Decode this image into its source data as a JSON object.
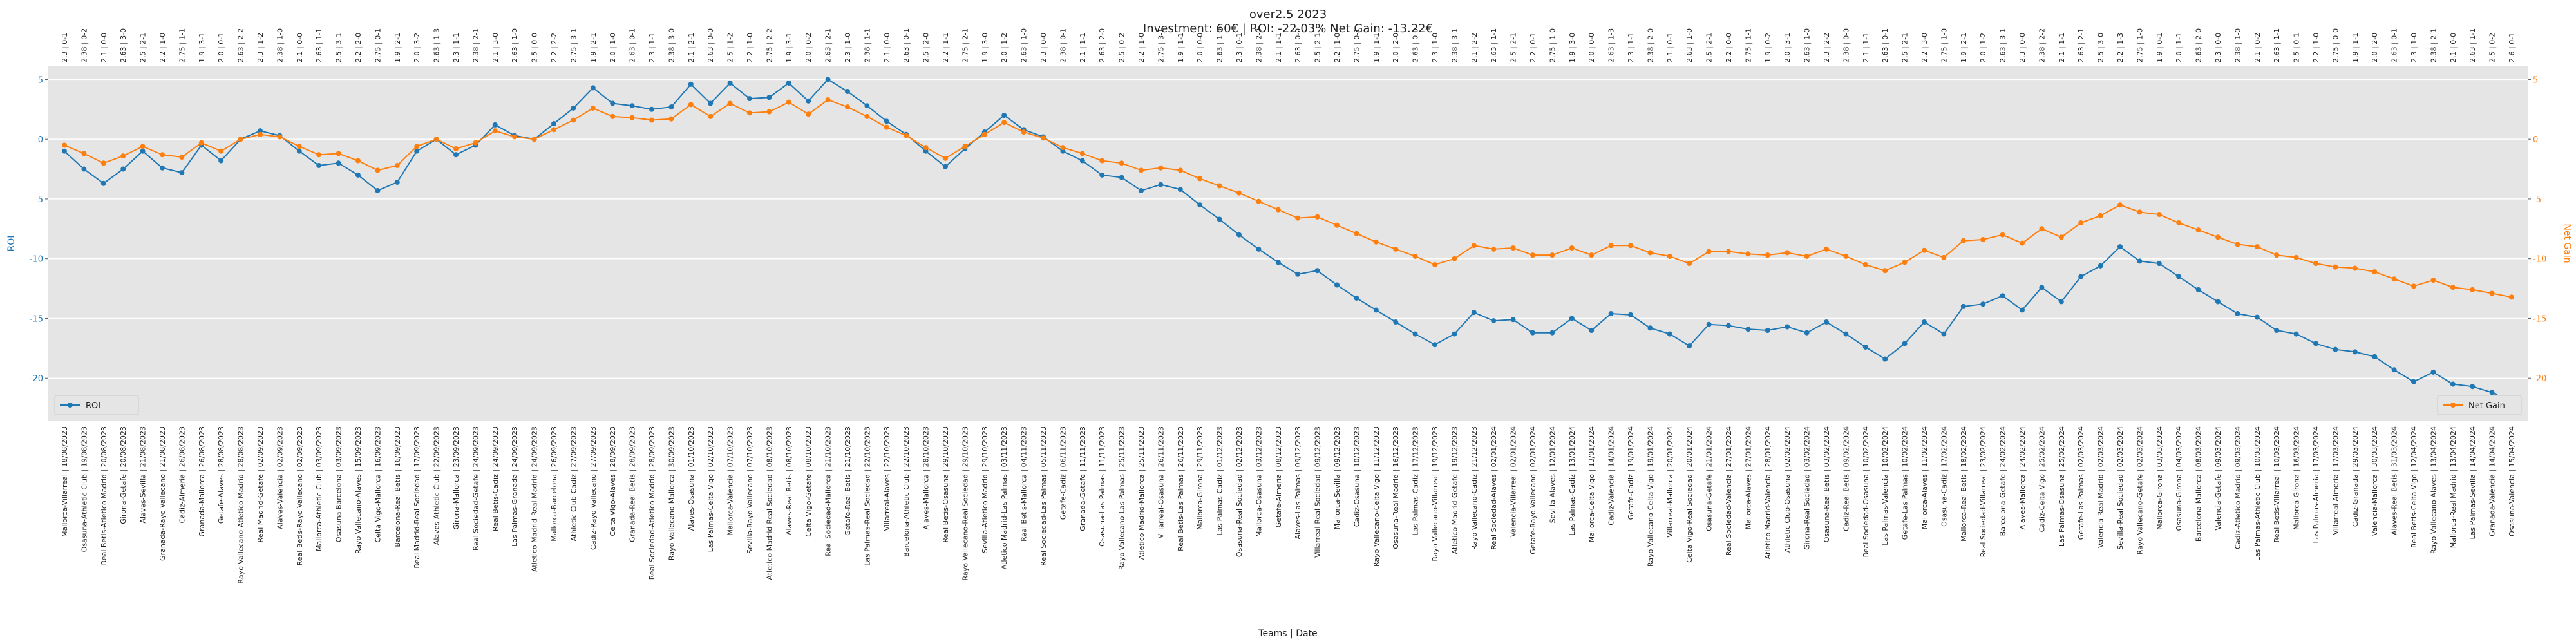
{
  "chart_data": {
    "type": "line",
    "title": "over2.5 2023",
    "subtitle": "Investment: 60€ | ROI: -22.03% Net Gain: -13.22€",
    "xlabel": "Teams | Date",
    "ylabel": "ROI",
    "y2label": "Net Gain",
    "ylim": [
      -23.6,
      6.1
    ],
    "yticks": [
      -20,
      -15,
      -10,
      -5,
      0,
      5
    ],
    "y2lim": [
      -23.6,
      6.1
    ],
    "y2ticks": [
      -20,
      -15,
      -10,
      -5,
      0,
      5
    ],
    "grid": true,
    "categories": [
      "Mallorca-Villarreal | 18/08/2023",
      "Osasuna-Athletic Club | 19/08/2023",
      "Real Betis-Atletico Madrid | 20/08/2023",
      "Girona-Getafe | 20/08/2023",
      "Alaves-Sevilla | 21/08/2023",
      "Granada-Rayo Vallecano | 21/08/2023",
      "Cadiz-Almeria | 26/08/2023",
      "Granada-Mallorca | 26/08/2023",
      "Getafe-Alaves | 28/08/2023",
      "Rayo Vallecano-Atletico Madrid | 28/08/2023",
      "Real Madrid-Getafe | 02/09/2023",
      "Alaves-Valencia | 02/09/2023",
      "Real Betis-Rayo Vallecano | 02/09/2023",
      "Mallorca-Athletic Club | 03/09/2023",
      "Osasuna-Barcelona | 03/09/2023",
      "Rayo Vallecano-Alaves | 15/09/2023",
      "Celta Vigo-Mallorca | 16/09/2023",
      "Barcelona-Real Betis | 16/09/2023",
      "Real Madrid-Real Sociedad | 17/09/2023",
      "Alaves-Athletic Club | 22/09/2023",
      "Girona-Mallorca | 23/09/2023",
      "Real Sociedad-Getafe | 24/09/2023",
      "Real Betis-Cadiz | 24/09/2023",
      "Las Palmas-Granada | 24/09/2023",
      "Atletico Madrid-Real Madrid | 24/09/2023",
      "Mallorca-Barcelona | 26/09/2023",
      "Athletic Club-Cadiz | 27/09/2023",
      "Cadiz-Rayo Vallecano | 27/09/2023",
      "Celta Vigo-Alaves | 28/09/2023",
      "Granada-Real Betis | 28/09/2023",
      "Real Sociedad-Atletico Madrid | 28/09/2023",
      "Rayo Vallecano-Mallorca | 30/09/2023",
      "Alaves-Osasuna | 01/10/2023",
      "Las Palmas-Celta Vigo | 02/10/2023",
      "Mallorca-Valencia | 07/10/2023",
      "Sevilla-Rayo Vallecano | 07/10/2023",
      "Atletico Madrid-Real Sociedad | 08/10/2023",
      "Alaves-Real Betis | 08/10/2023",
      "Celta Vigo-Getafe | 08/10/2023",
      "Real Sociedad-Mallorca | 21/10/2023",
      "Getafe-Real Betis | 21/10/2023",
      "Las Palmas-Real Sociedad | 22/10/2023",
      "Villarreal-Alaves | 22/10/2023",
      "Barcelona-Athletic Club | 22/10/2023",
      "Alaves-Mallorca | 28/10/2023",
      "Real Betis-Osasuna | 29/10/2023",
      "Rayo Vallecano-Real Sociedad | 29/10/2023",
      "Sevilla-Atletico Madrid | 29/10/2023",
      "Atletico Madrid-Las Palmas | 03/11/2023",
      "Real Betis-Mallorca | 04/11/2023",
      "Real Sociedad-Las Palmas | 05/11/2023",
      "Getafe-Cadiz | 06/11/2023",
      "Granada-Getafe | 11/11/2023",
      "Osasuna-Las Palmas | 11/11/2023",
      "Rayo Vallecano-Las Palmas | 25/11/2023",
      "Atletico Madrid-Mallorca | 25/11/2023",
      "Villarreal-Osasuna | 26/11/2023",
      "Real Betis-Las Palmas | 26/11/2023",
      "Mallorca-Girona | 29/11/2023",
      "Las Palmas-Cadiz | 01/12/2023",
      "Osasuna-Real Sociedad | 02/12/2023",
      "Mallorca-Osasuna | 03/12/2023",
      "Getafe-Almeria | 08/12/2023",
      "Alaves-Las Palmas | 09/12/2023",
      "Villarreal-Real Sociedad | 09/12/2023",
      "Mallorca-Sevilla | 09/12/2023",
      "Cadiz-Osasuna | 10/12/2023",
      "Rayo Vallecano-Celta Vigo | 11/12/2023",
      "Osasuna-Real Madrid | 16/12/2023",
      "Las Palmas-Cadiz | 17/12/2023",
      "Rayo Vallecano-Villarreal | 19/12/2023",
      "Atletico Madrid-Getafe | 19/12/2023",
      "Rayo Vallecano-Cadiz | 21/12/2023",
      "Real Sociedad-Alaves | 02/01/2024",
      "Valencia-Villarreal | 02/01/2024",
      "Getafe-Rayo Vallecano | 02/01/2024",
      "Sevilla-Alaves | 12/01/2024",
      "Las Palmas-Cadiz | 13/01/2024",
      "Mallorca-Celta Vigo | 13/01/2024",
      "Cadiz-Valencia | 14/01/2024",
      "Getafe-Cadiz | 19/01/2024",
      "Rayo Vallecano-Celta Vigo | 19/01/2024",
      "Villarreal-Mallorca | 20/01/2024",
      "Celta Vigo-Real Sociedad | 20/01/2024",
      "Osasuna-Getafe | 21/01/2024",
      "Real Sociedad-Valencia | 27/01/2024",
      "Mallorca-Alaves | 27/01/2024",
      "Atletico Madrid-Valencia | 28/01/2024",
      "Athletic Club-Osasuna | 02/02/2024",
      "Girona-Real Sociedad | 03/02/2024",
      "Osasuna-Real Betis | 03/02/2024",
      "Cadiz-Real Betis | 09/02/2024",
      "Real Sociedad-Osasuna | 10/02/2024",
      "Las Palmas-Valencia | 10/02/2024",
      "Getafe-Las Palmas | 10/02/2024",
      "Mallorca-Alaves | 11/02/2024",
      "Osasuna-Cadiz | 17/02/2024",
      "Mallorca-Real Betis | 18/02/2024",
      "Real Sociedad-Villarreal | 23/02/2024",
      "Barcelona-Getafe | 24/02/2024",
      "Alaves-Mallorca | 24/02/2024",
      "Cadiz-Celta Vigo | 25/02/2024",
      "Las Palmas-Osasuna | 25/02/2024",
      "Getafe-Las Palmas | 02/03/2024",
      "Valencia-Real Madrid | 02/03/2024",
      "Sevilla-Real Sociedad | 02/03/2024",
      "Rayo Vallecano-Getafe | 02/03/2024",
      "Mallorca-Girona | 03/03/2024",
      "Osasuna-Girona | 04/03/2024",
      "Barcelona-Mallorca | 08/03/2024",
      "Valencia-Getafe | 09/03/2024",
      "Cadiz-Atletico Madrid | 09/03/2024",
      "Las Palmas-Athletic Club | 10/03/2024",
      "Real Betis-Villarreal | 10/03/2024",
      "Mallorca-Girona | 16/03/2024",
      "Las Palmas-Almeria | 17/03/2024",
      "Villarreal-Almeria | 17/03/2024",
      "Cadiz-Granada | 29/03/2024",
      "Valencia-Mallorca | 30/03/2024",
      "Alaves-Real Betis | 31/03/2024",
      "Real Betis-Celta Vigo | 12/04/2024",
      "Rayo Vallecano-Alaves | 13/04/2024",
      "Mallorca-Real Madrid | 13/04/2024",
      "Las Palmas-Sevilla | 14/04/2024",
      "Granada-Valencia | 14/04/2024",
      "Osasuna-Valencia | 15/04/2024"
    ],
    "top_categories": [
      "2.3 | 0-1",
      "2.38 | 0-2",
      "2.1 | 0-0",
      "2.63 | 3-0",
      "2.5 | 2-1",
      "2.2 | 1-0",
      "2.75 | 1-1",
      "1.9 | 3-1",
      "2.0 | 0-1",
      "2.63 | 2-2",
      "2.3 | 1-2",
      "2.38 | 1-0",
      "2.1 | 0-0",
      "2.63 | 1-1",
      "2.5 | 3-1",
      "2.2 | 2-0",
      "2.75 | 0-1",
      "1.9 | 2-1",
      "2.0 | 3-2",
      "2.63 | 1-3",
      "2.3 | 1-1",
      "2.38 | 2-1",
      "2.1 | 3-0",
      "2.63 | 1-0",
      "2.5 | 0-0",
      "2.2 | 2-2",
      "2.75 | 3-1",
      "1.9 | 2-1",
      "2.0 | 1-0",
      "2.63 | 0-1",
      "2.3 | 1-1",
      "2.38 | 3-0",
      "2.1 | 2-1",
      "2.63 | 0-0",
      "2.5 | 1-2",
      "2.2 | 1-0",
      "2.75 | 2-2",
      "1.9 | 3-1",
      "2.0 | 0-2",
      "2.63 | 2-1",
      "2.3 | 1-0",
      "2.38 | 1-1",
      "2.1 | 0-0",
      "2.63 | 0-1",
      "2.5 | 2-0",
      "2.2 | 1-1",
      "2.75 | 2-1",
      "1.9 | 3-0",
      "2.0 | 1-2",
      "2.63 | 1-0",
      "2.3 | 0-0",
      "2.38 | 0-1",
      "2.1 | 1-1",
      "2.63 | 2-0",
      "2.5 | 0-2",
      "2.2 | 1-0",
      "2.75 | 3-1",
      "1.9 | 1-1",
      "2.0 | 0-0",
      "2.63 | 1-0",
      "2.3 | 0-1",
      "2.38 | 2-0",
      "2.1 | 1-1",
      "2.63 | 0-0",
      "2.5 | 2-1",
      "2.2 | 1-0",
      "2.75 | 0-1",
      "1.9 | 1-1",
      "2.0 | 2-0",
      "2.63 | 0-0",
      "2.3 | 1-0",
      "2.38 | 3-1",
      "2.1 | 2-2",
      "2.63 | 1-1",
      "2.5 | 2-1",
      "2.2 | 0-1",
      "2.75 | 1-0",
      "1.9 | 3-0",
      "2.0 | 0-0",
      "2.63 | 1-3",
      "2.3 | 1-1",
      "2.38 | 2-0",
      "2.1 | 0-1",
      "2.63 | 1-0",
      "2.5 | 2-1",
      "2.2 | 0-0",
      "2.75 | 1-1",
      "1.9 | 0-2",
      "2.0 | 3-1",
      "2.63 | 1-0",
      "2.3 | 2-2",
      "2.38 | 0-0",
      "2.1 | 1-1",
      "2.63 | 0-1",
      "2.5 | 2-1",
      "2.2 | 3-0",
      "2.75 | 1-0",
      "1.9 | 2-1",
      "2.0 | 1-2",
      "2.63 | 3-1",
      "2.3 | 0-0",
      "2.38 | 2-2",
      "2.1 | 1-1",
      "2.63 | 2-1",
      "2.5 | 3-0",
      "2.2 | 1-3",
      "2.75 | 1-0",
      "1.9 | 0-1",
      "2.0 | 1-1",
      "2.63 | 2-0",
      "2.3 | 0-0",
      "2.38 | 1-0",
      "2.1 | 0-2",
      "2.63 | 1-1",
      "2.5 | 0-1",
      "2.2 | 1-0",
      "2.75 | 0-0",
      "1.9 | 1-1",
      "2.0 | 2-0",
      "2.63 | 0-1",
      "2.3 | 1-0",
      "2.38 | 2-1",
      "2.1 | 0-0",
      "2.63 | 1-1",
      "2.5 | 0-2",
      "2.6 | 0-1"
    ],
    "series": [
      {
        "name": "ROI",
        "color": "#1f77b4",
        "axis": "y",
        "legend": "lower left",
        "values": [
          -1.0,
          -2.5,
          -3.7,
          -2.5,
          -1.0,
          -2.4,
          -2.8,
          -0.5,
          -1.8,
          0.0,
          0.7,
          0.3,
          -1.0,
          -2.2,
          -2.0,
          -3.0,
          -4.3,
          -3.6,
          -1.0,
          0.0,
          -1.3,
          -0.5,
          1.2,
          0.3,
          0.0,
          1.3,
          2.6,
          4.3,
          3.0,
          2.8,
          2.5,
          2.7,
          4.6,
          3.0,
          4.7,
          3.4,
          3.5,
          4.7,
          3.2,
          5.0,
          4.0,
          2.8,
          1.5,
          0.4,
          -1.0,
          -2.3,
          -0.8,
          0.6,
          2.0,
          0.8,
          0.2,
          -1.0,
          -1.8,
          -3.0,
          -3.2,
          -4.3,
          -3.8,
          -4.2,
          -5.5,
          -6.7,
          -8.0,
          -9.2,
          -10.3,
          -11.3,
          -11.0,
          -12.2,
          -13.3,
          -14.3,
          -15.3,
          -16.3,
          -17.2,
          -16.3,
          -14.5,
          -15.2,
          -15.1,
          -16.2,
          -16.2,
          -15.0,
          -16.0,
          -14.6,
          -14.7,
          -15.8,
          -16.3,
          -17.3,
          -15.5,
          -15.6,
          -15.9,
          -16.0,
          -15.7,
          -16.2,
          -15.3,
          -16.3,
          -17.4,
          -18.4,
          -17.1,
          -15.3,
          -16.3,
          -14.0,
          -13.8,
          -13.1,
          -14.3,
          -12.4,
          -13.6,
          -11.5,
          -10.6,
          -9.0,
          -10.2,
          -10.4,
          -11.5,
          -12.6,
          -13.6,
          -14.6,
          -14.9,
          -16.0,
          -16.3,
          -17.1,
          -17.6,
          -17.8,
          -18.2,
          -19.3,
          -20.3,
          -19.5,
          -20.5,
          -20.7,
          -21.2,
          -22.03
        ]
      },
      {
        "name": "Net Gain",
        "color": "#ff7f0e",
        "axis": "y2",
        "legend": "lower right",
        "values": [
          -0.5,
          -1.2,
          -2.0,
          -1.4,
          -0.6,
          -1.3,
          -1.5,
          -0.3,
          -1.0,
          0.0,
          0.4,
          0.2,
          -0.6,
          -1.3,
          -1.2,
          -1.8,
          -2.6,
          -2.2,
          -0.6,
          0.0,
          -0.8,
          -0.3,
          0.7,
          0.2,
          0.0,
          0.8,
          1.6,
          2.6,
          1.9,
          1.8,
          1.6,
          1.7,
          2.9,
          1.9,
          3.0,
          2.2,
          2.3,
          3.1,
          2.1,
          3.3,
          2.7,
          1.9,
          1.0,
          0.3,
          -0.7,
          -1.6,
          -0.6,
          0.4,
          1.4,
          0.6,
          0.1,
          -0.7,
          -1.2,
          -1.8,
          -2.0,
          -2.6,
          -2.4,
          -2.6,
          -3.3,
          -3.9,
          -4.5,
          -5.2,
          -5.9,
          -6.6,
          -6.5,
          -7.2,
          -7.9,
          -8.6,
          -9.2,
          -9.8,
          -10.5,
          -10.0,
          -8.9,
          -9.2,
          -9.1,
          -9.7,
          -9.7,
          -9.1,
          -9.7,
          -8.9,
          -8.9,
          -9.5,
          -9.8,
          -10.4,
          -9.4,
          -9.4,
          -9.6,
          -9.7,
          -9.5,
          -9.8,
          -9.2,
          -9.8,
          -10.5,
          -11.0,
          -10.3,
          -9.3,
          -9.9,
          -8.5,
          -8.4,
          -8.0,
          -8.7,
          -7.5,
          -8.2,
          -7.0,
          -6.4,
          -5.5,
          -6.1,
          -6.3,
          -7.0,
          -7.6,
          -8.2,
          -8.8,
          -9.0,
          -9.7,
          -9.9,
          -10.4,
          -10.7,
          -10.8,
          -11.1,
          -11.7,
          -12.3,
          -11.8,
          -12.4,
          -12.6,
          -12.9,
          -13.22
        ]
      }
    ]
  }
}
